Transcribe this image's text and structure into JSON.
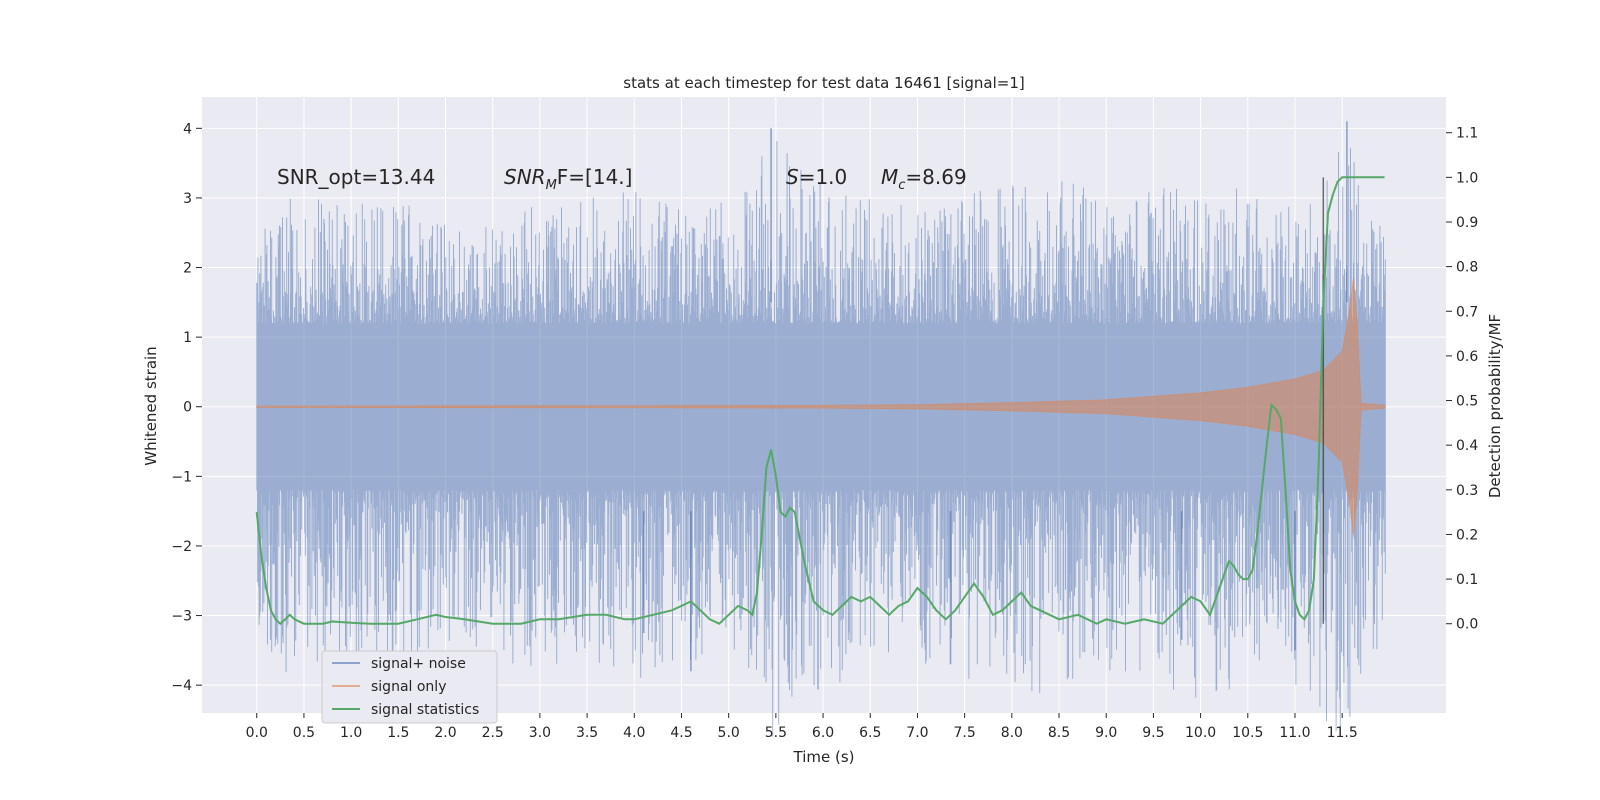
{
  "chart_data": {
    "type": "line",
    "title": "stats at each timestep for test data 16461 [signal=1]",
    "xlabel": "Time (s)",
    "ylabel_left": "Whitened strain",
    "ylabel_right": "Detection probability/MF",
    "xlim": [
      -0.58,
      12.6
    ],
    "ylim_left": [
      -4.4,
      4.45
    ],
    "ylim_right": [
      -0.2,
      1.18
    ],
    "x_ticks": [
      0.0,
      0.5,
      1.0,
      1.5,
      2.0,
      2.5,
      3.0,
      3.5,
      4.0,
      4.5,
      5.0,
      5.5,
      6.0,
      6.5,
      7.0,
      7.5,
      8.0,
      8.5,
      9.0,
      9.5,
      10.0,
      10.5,
      11.0,
      11.5
    ],
    "x_tick_labels": [
      "0.0",
      "0.5",
      "1.0",
      "1.5",
      "2.0",
      "2.5",
      "3.0",
      "3.5",
      "4.0",
      "4.5",
      "5.0",
      "5.5",
      "6.0",
      "6.5",
      "7.0",
      "7.5",
      "8.0",
      "8.5",
      "9.0",
      "9.5",
      "10.0",
      "10.5",
      "11.0",
      "11.5"
    ],
    "y_left_ticks": [
      -4,
      -3,
      -2,
      -1,
      0,
      1,
      2,
      3,
      4
    ],
    "y_left_tick_labels": [
      "−4",
      "−3",
      "−2",
      "−1",
      "0",
      "1",
      "2",
      "3",
      "4"
    ],
    "y_right_ticks": [
      0.0,
      0.1,
      0.2,
      0.3,
      0.4,
      0.5,
      0.6,
      0.7,
      0.8,
      0.9,
      1.0,
      1.1
    ],
    "y_right_tick_labels": [
      "0.0",
      "0.1",
      "0.2",
      "0.3",
      "0.4",
      "0.5",
      "0.6",
      "0.7",
      "0.8",
      "0.9",
      "1.0",
      "1.1"
    ],
    "grid": true,
    "legend_position": "lower-left",
    "annotations": {
      "snr_opt": "SNR_opt=13.44",
      "snr_mf_main": "SNR",
      "snr_mf_sub": "M",
      "snr_mf_rest": "F=[14.]",
      "s_main": "S",
      "s_rest": "=1.0",
      "mc_main": "M",
      "mc_sub": "c",
      "mc_rest": "=8.69"
    },
    "vertical_line_x": 11.3,
    "series": [
      {
        "name": "signal+ noise",
        "axis": "left",
        "color": "#4c72b0",
        "kind": "noise",
        "envelope": [
          [
            0.0,
            2.4
          ],
          [
            0.35,
            3.1
          ],
          [
            0.9,
            2.9
          ],
          [
            1.5,
            3.05
          ],
          [
            2.2,
            2.6
          ],
          [
            2.7,
            2.95
          ],
          [
            3.3,
            2.9
          ],
          [
            3.9,
            3.15
          ],
          [
            4.5,
            2.85
          ],
          [
            5.15,
            3.05
          ],
          [
            5.45,
            4.0
          ],
          [
            5.9,
            3.25
          ],
          [
            6.5,
            3.0
          ],
          [
            7.0,
            3.1
          ],
          [
            7.6,
            3.1
          ],
          [
            8.4,
            3.3
          ],
          [
            9.2,
            3.0
          ],
          [
            10.0,
            3.35
          ],
          [
            10.6,
            3.1
          ],
          [
            11.1,
            3.2
          ],
          [
            11.55,
            4.1
          ],
          [
            11.75,
            2.7
          ],
          [
            11.95,
            2.6
          ]
        ],
        "extremes": [
          [
            5.45,
            4.0
          ],
          [
            11.55,
            4.1
          ],
          [
            4.6,
            -3.8
          ],
          [
            7.35,
            -3.7
          ],
          [
            11.0,
            -3.5
          ],
          [
            4.1,
            -3.25
          ],
          [
            9.8,
            -3.35
          ]
        ],
        "x_start": 0.0,
        "x_end": 11.96
      },
      {
        "name": "signal only",
        "axis": "left",
        "color": "#dd8452",
        "kind": "chirp",
        "x": [
          0.0,
          6.0,
          7.0,
          8.0,
          9.0,
          10.0,
          10.5,
          11.0,
          11.3,
          11.5,
          11.58,
          11.62,
          11.66,
          11.7,
          11.96
        ],
        "amplitude": [
          0.01,
          0.02,
          0.03,
          0.06,
          0.1,
          0.2,
          0.28,
          0.4,
          0.52,
          0.8,
          1.4,
          1.85,
          1.2,
          0.05,
          0.02
        ]
      },
      {
        "name": "signal statistics",
        "axis": "right",
        "color": "#55a868",
        "kind": "line",
        "x": [
          0.0,
          0.05,
          0.1,
          0.15,
          0.2,
          0.25,
          0.3,
          0.35,
          0.4,
          0.5,
          0.6,
          0.7,
          0.8,
          1.0,
          1.2,
          1.5,
          1.7,
          1.9,
          2.0,
          2.2,
          2.5,
          2.8,
          3.0,
          3.2,
          3.5,
          3.7,
          3.9,
          4.0,
          4.2,
          4.4,
          4.5,
          4.6,
          4.7,
          4.8,
          4.9,
          5.0,
          5.1,
          5.2,
          5.25,
          5.3,
          5.35,
          5.4,
          5.45,
          5.5,
          5.55,
          5.6,
          5.65,
          5.7,
          5.8,
          5.9,
          6.0,
          6.1,
          6.2,
          6.3,
          6.4,
          6.5,
          6.6,
          6.7,
          6.8,
          6.9,
          7.0,
          7.1,
          7.2,
          7.3,
          7.4,
          7.5,
          7.6,
          7.7,
          7.8,
          7.9,
          8.0,
          8.1,
          8.2,
          8.3,
          8.4,
          8.5,
          8.7,
          8.9,
          9.0,
          9.2,
          9.4,
          9.6,
          9.8,
          9.9,
          10.0,
          10.1,
          10.2,
          10.3,
          10.35,
          10.4,
          10.45,
          10.5,
          10.55,
          10.6,
          10.65,
          10.7,
          10.75,
          10.8,
          10.85,
          10.9,
          10.95,
          11.0,
          11.05,
          11.1,
          11.15,
          11.2,
          11.25,
          11.3,
          11.35,
          11.4,
          11.45,
          11.5,
          11.55,
          11.6,
          11.65,
          11.7,
          11.8,
          11.9,
          11.95
        ],
        "y": [
          0.25,
          0.15,
          0.08,
          0.03,
          0.01,
          0.0,
          0.01,
          0.02,
          0.01,
          0.0,
          0.0,
          0.0,
          0.005,
          0.002,
          0.0,
          0.0,
          0.01,
          0.02,
          0.015,
          0.01,
          0.0,
          0.0,
          0.01,
          0.01,
          0.02,
          0.02,
          0.01,
          0.01,
          0.02,
          0.03,
          0.04,
          0.05,
          0.03,
          0.01,
          0.0,
          0.02,
          0.04,
          0.03,
          0.02,
          0.07,
          0.2,
          0.35,
          0.39,
          0.33,
          0.25,
          0.24,
          0.26,
          0.25,
          0.14,
          0.05,
          0.03,
          0.02,
          0.04,
          0.06,
          0.05,
          0.06,
          0.04,
          0.02,
          0.04,
          0.05,
          0.08,
          0.06,
          0.03,
          0.01,
          0.03,
          0.06,
          0.09,
          0.06,
          0.02,
          0.03,
          0.05,
          0.07,
          0.04,
          0.03,
          0.02,
          0.01,
          0.02,
          0.0,
          0.01,
          0.0,
          0.01,
          0.0,
          0.04,
          0.06,
          0.05,
          0.02,
          0.08,
          0.14,
          0.13,
          0.11,
          0.1,
          0.1,
          0.12,
          0.2,
          0.3,
          0.4,
          0.49,
          0.48,
          0.46,
          0.3,
          0.12,
          0.05,
          0.02,
          0.01,
          0.03,
          0.1,
          0.35,
          0.72,
          0.92,
          0.96,
          0.99,
          1.0,
          1.0,
          1.0,
          1.0,
          1.0,
          1.0,
          1.0,
          1.0
        ]
      }
    ]
  }
}
